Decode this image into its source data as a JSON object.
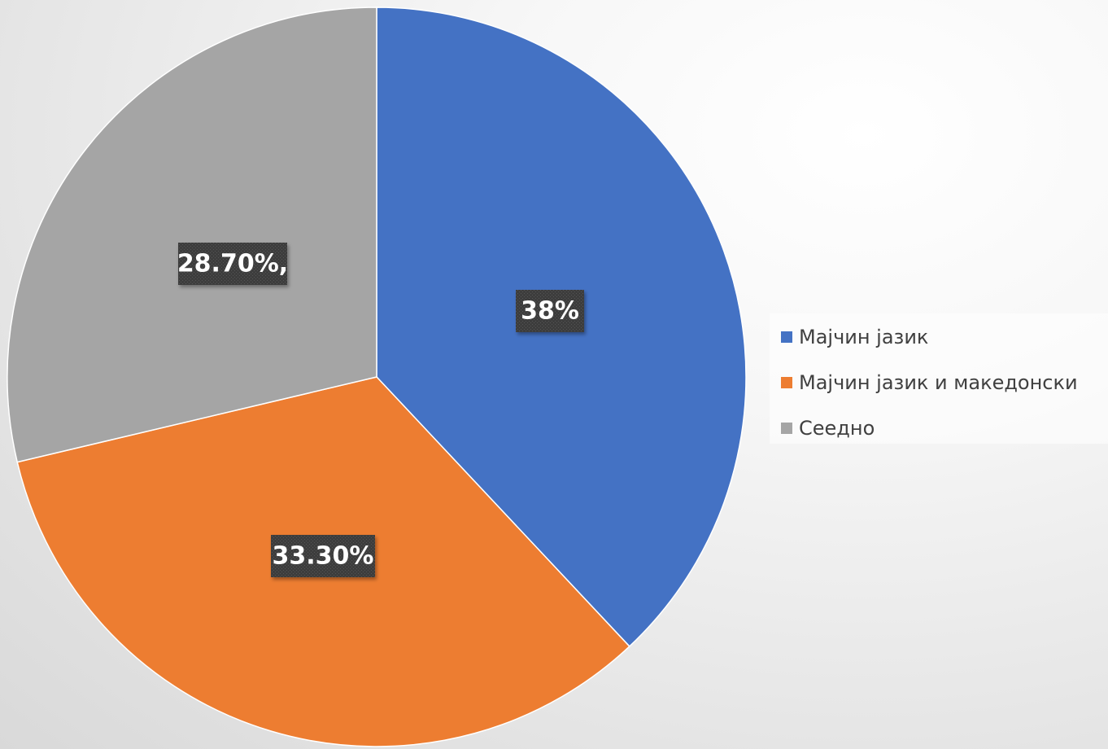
{
  "chart_data": {
    "type": "pie",
    "title": "",
    "slices": [
      {
        "label": "Мајчин јазик",
        "value": 38,
        "data_label": "38%",
        "color": "#4472C4"
      },
      {
        "label": "Мајчин јазик и македонски",
        "value": 33.3,
        "data_label": "33.30%",
        "color": "#ED7D31"
      },
      {
        "label": "Сеедно",
        "value": 28.7,
        "data_label": "28.70%,",
        "color": "#A5A5A5"
      }
    ],
    "start_angle_deg": 0,
    "direction": "clockwise",
    "legend_position": "right",
    "data_label_style": {
      "text_color": "#FFFFFF",
      "box_color": "#404040"
    }
  }
}
